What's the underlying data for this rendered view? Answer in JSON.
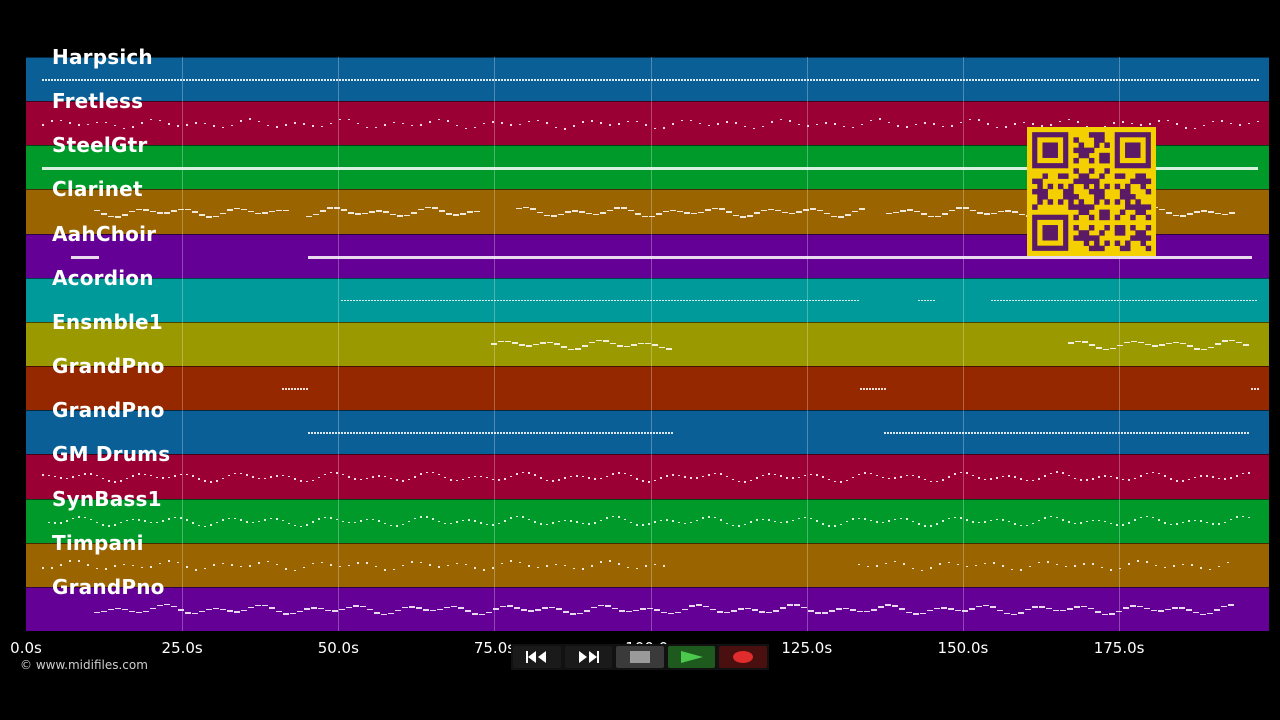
{
  "tracks": [
    {
      "name": "Harpsich",
      "color": "#0a5f96"
    },
    {
      "name": "Fretless",
      "color": "#9a0033"
    },
    {
      "name": "SteelGtr",
      "color": "#009a2a"
    },
    {
      "name": "Clarinet",
      "color": "#9a6400"
    },
    {
      "name": "AahChoir",
      "color": "#640096"
    },
    {
      "name": "Acordion",
      "color": "#009a9a"
    },
    {
      "name": "Ensmble1",
      "color": "#9a9a00"
    },
    {
      "name": "GrandPno",
      "color": "#962800"
    },
    {
      "name": "GrandPno",
      "color": "#0a5f96"
    },
    {
      "name": "GM Drums",
      "color": "#9a0033"
    },
    {
      "name": "SynBass1",
      "color": "#009a2a"
    },
    {
      "name": "Timpani",
      "color": "#9a6400"
    },
    {
      "name": "GrandPno",
      "color": "#640096"
    }
  ],
  "time_axis": {
    "ticks": [
      "0.0s",
      "25.0s",
      "50.0s",
      "75.0s",
      "100.0s",
      "125.0s",
      "150.0s",
      "175.0s"
    ],
    "max_seconds": 199
  },
  "copyright": "© www.midifiles.com",
  "transport": {
    "rewind": "rewind-icon",
    "fast_forward": "fast-forward-icon",
    "stop": "stop-icon",
    "play": "play-icon",
    "record": "record-icon"
  },
  "qr_code": {
    "color": "#f5d000",
    "module_color": "#5a1a66"
  }
}
